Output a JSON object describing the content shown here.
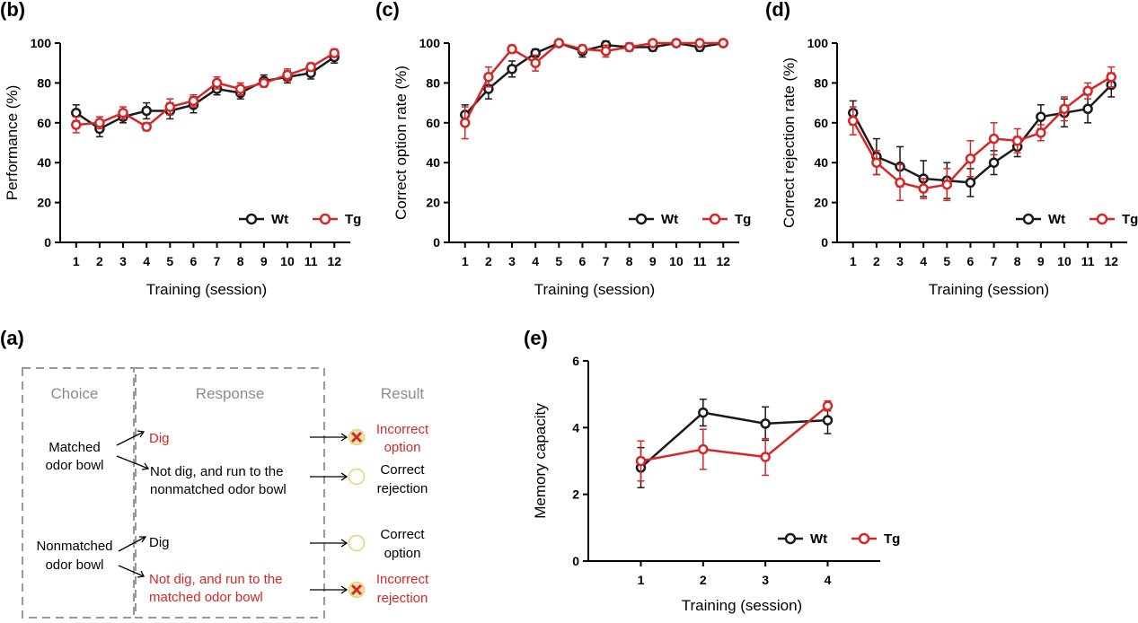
{
  "colors": {
    "wt": "#1a1a1a",
    "tg": "#d62728",
    "dashed_border": "#999999",
    "circle": "#e6d27a"
  },
  "chart_data": [
    {
      "panel": "(b)",
      "type": "line",
      "xlabel": "Training  (session)",
      "ylabel": "Performance (%)",
      "x": [
        1,
        2,
        3,
        4,
        5,
        6,
        7,
        8,
        9,
        10,
        11,
        12
      ],
      "ylim": [
        0,
        100
      ],
      "yticks": [
        0,
        20,
        40,
        60,
        80,
        100
      ],
      "legend": "bottom-right",
      "series": [
        {
          "name": "Wt",
          "values": [
            65,
            57,
            63,
            66,
            66,
            69,
            77,
            75,
            81,
            83,
            85,
            93
          ],
          "err": [
            4,
            4,
            3,
            4,
            4,
            4,
            3,
            3,
            3,
            3,
            3,
            3
          ]
        },
        {
          "name": "Tg",
          "values": [
            59,
            60,
            65,
            58,
            68,
            71,
            80,
            77,
            80,
            84,
            88,
            95
          ],
          "err": [
            4,
            3,
            3,
            2,
            4,
            3,
            3,
            3,
            2,
            3,
            2,
            2
          ]
        }
      ]
    },
    {
      "panel": "(c)",
      "type": "line",
      "xlabel": "Training  (session)",
      "ylabel": "Correct option rate (%)",
      "x": [
        1,
        2,
        3,
        4,
        5,
        6,
        7,
        8,
        9,
        10,
        11,
        12
      ],
      "ylim": [
        0,
        100
      ],
      "yticks": [
        0,
        20,
        40,
        60,
        80,
        100
      ],
      "legend": "bottom-right",
      "series": [
        {
          "name": "Wt",
          "values": [
            64,
            77,
            87,
            95,
            100,
            96,
            99,
            98,
            98,
            100,
            98,
            100
          ],
          "err": [
            5,
            5,
            4,
            2,
            0,
            3,
            2,
            2,
            2,
            0,
            2,
            0
          ]
        },
        {
          "name": "Tg",
          "values": [
            60,
            83,
            97,
            90,
            100,
            97,
            96,
            98,
            100,
            100,
            100,
            100
          ],
          "err": [
            8,
            5,
            2,
            4,
            0,
            2,
            3,
            2,
            0,
            0,
            0,
            0
          ]
        }
      ]
    },
    {
      "panel": "(d)",
      "type": "line",
      "xlabel": "Training  (session)",
      "ylabel": "Correct rejection rate (%)",
      "x": [
        1,
        2,
        3,
        4,
        5,
        6,
        7,
        8,
        9,
        10,
        11,
        12
      ],
      "ylim": [
        0,
        100
      ],
      "yticks": [
        0,
        20,
        40,
        60,
        80,
        100
      ],
      "legend": "bottom-right",
      "series": [
        {
          "name": "Wt",
          "values": [
            65,
            43,
            38,
            32,
            31,
            30,
            40,
            48,
            63,
            65,
            67,
            79
          ],
          "err": [
            6,
            9,
            10,
            9,
            9,
            7,
            6,
            5,
            6,
            7,
            7,
            6
          ]
        },
        {
          "name": "Tg",
          "values": [
            61,
            40,
            30,
            27,
            29,
            42,
            52,
            51,
            55,
            67,
            76,
            83
          ],
          "err": [
            7,
            6,
            9,
            5,
            8,
            9,
            8,
            6,
            4,
            6,
            4,
            5
          ]
        }
      ]
    },
    {
      "panel": "(e)",
      "type": "line",
      "xlabel": "Training  (session)",
      "ylabel": "Memory capacity",
      "x": [
        1,
        2,
        3,
        4
      ],
      "ylim": [
        0,
        6
      ],
      "yticks": [
        0,
        2,
        4,
        6
      ],
      "legend": "bottom-right",
      "series": [
        {
          "name": "Wt",
          "values": [
            2.8,
            4.45,
            4.12,
            4.22
          ],
          "err": [
            0.6,
            0.4,
            0.5,
            0.4
          ]
        },
        {
          "name": "Tg",
          "values": [
            3.0,
            3.35,
            3.12,
            4.65
          ],
          "err": [
            0.6,
            0.6,
            0.55,
            0.15
          ]
        }
      ]
    }
  ],
  "diagram": {
    "panel": "(a)",
    "headers": {
      "choice": "Choice",
      "response": "Response",
      "result": "Result"
    },
    "rows": [
      {
        "choice_line1": "Matched",
        "choice_line2": "odor bowl"
      },
      {
        "choice_line1": "Nonmatched",
        "choice_line2": "odor bowl"
      }
    ],
    "responses": {
      "dig1": "Dig",
      "notdig1_line1": "Not dig, and run to the",
      "notdig1_line2": "nonmatched odor bowl",
      "dig2": "Dig",
      "notdig2_line1": "Not dig, and run to the",
      "notdig2_line2": "matched odor bowl"
    },
    "results": {
      "r1_line1": "Incorrect",
      "r1_line2": "option",
      "r2_line1": "Correct",
      "r2_line2": "rejection",
      "r3_line1": "Correct",
      "r3_line2": "option",
      "r4_line1": "Incorrect",
      "r4_line2": "rejection"
    }
  }
}
